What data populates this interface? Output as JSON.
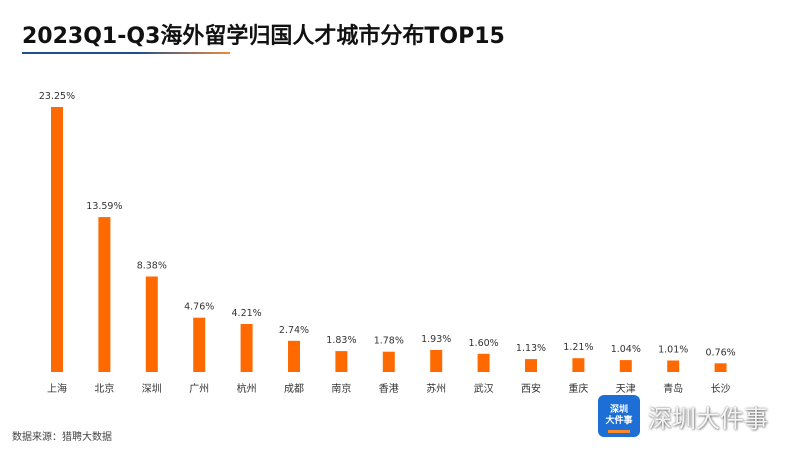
{
  "title": "2023Q1-Q3海外留学归国人才城市分布TOP15",
  "source": "数据来源：猎聘大数据",
  "watermark": {
    "logo_line1": "深圳",
    "logo_line2": "大件事",
    "text": "深圳大件事"
  },
  "colors": {
    "bar": "#ff6a00",
    "title_rule_start": "#1f4f8f",
    "title_rule_end": "#f08a3c"
  },
  "chart_data": {
    "type": "bar",
    "title": "2023Q1-Q3海外留学归国人才城市分布TOP15",
    "xlabel": "",
    "ylabel": "",
    "ylim": [
      0,
      25
    ],
    "grid": false,
    "legend": "none",
    "categories": [
      "上海",
      "北京",
      "深圳",
      "广州",
      "杭州",
      "成都",
      "南京",
      "香港",
      "苏州",
      "武汉",
      "西安",
      "重庆",
      "天津",
      "青岛",
      "长沙"
    ],
    "values": [
      23.25,
      13.59,
      8.38,
      4.76,
      4.21,
      2.74,
      1.83,
      1.78,
      1.93,
      1.6,
      1.13,
      1.21,
      1.04,
      1.01,
      0.76
    ],
    "value_labels": [
      "23.25%",
      "13.59%",
      "8.38%",
      "4.76%",
      "4.21%",
      "2.74%",
      "1.83%",
      "1.78%",
      "1.93%",
      "1.60%",
      "1.13%",
      "1.21%",
      "1.04%",
      "1.01%",
      "0.76%"
    ]
  }
}
